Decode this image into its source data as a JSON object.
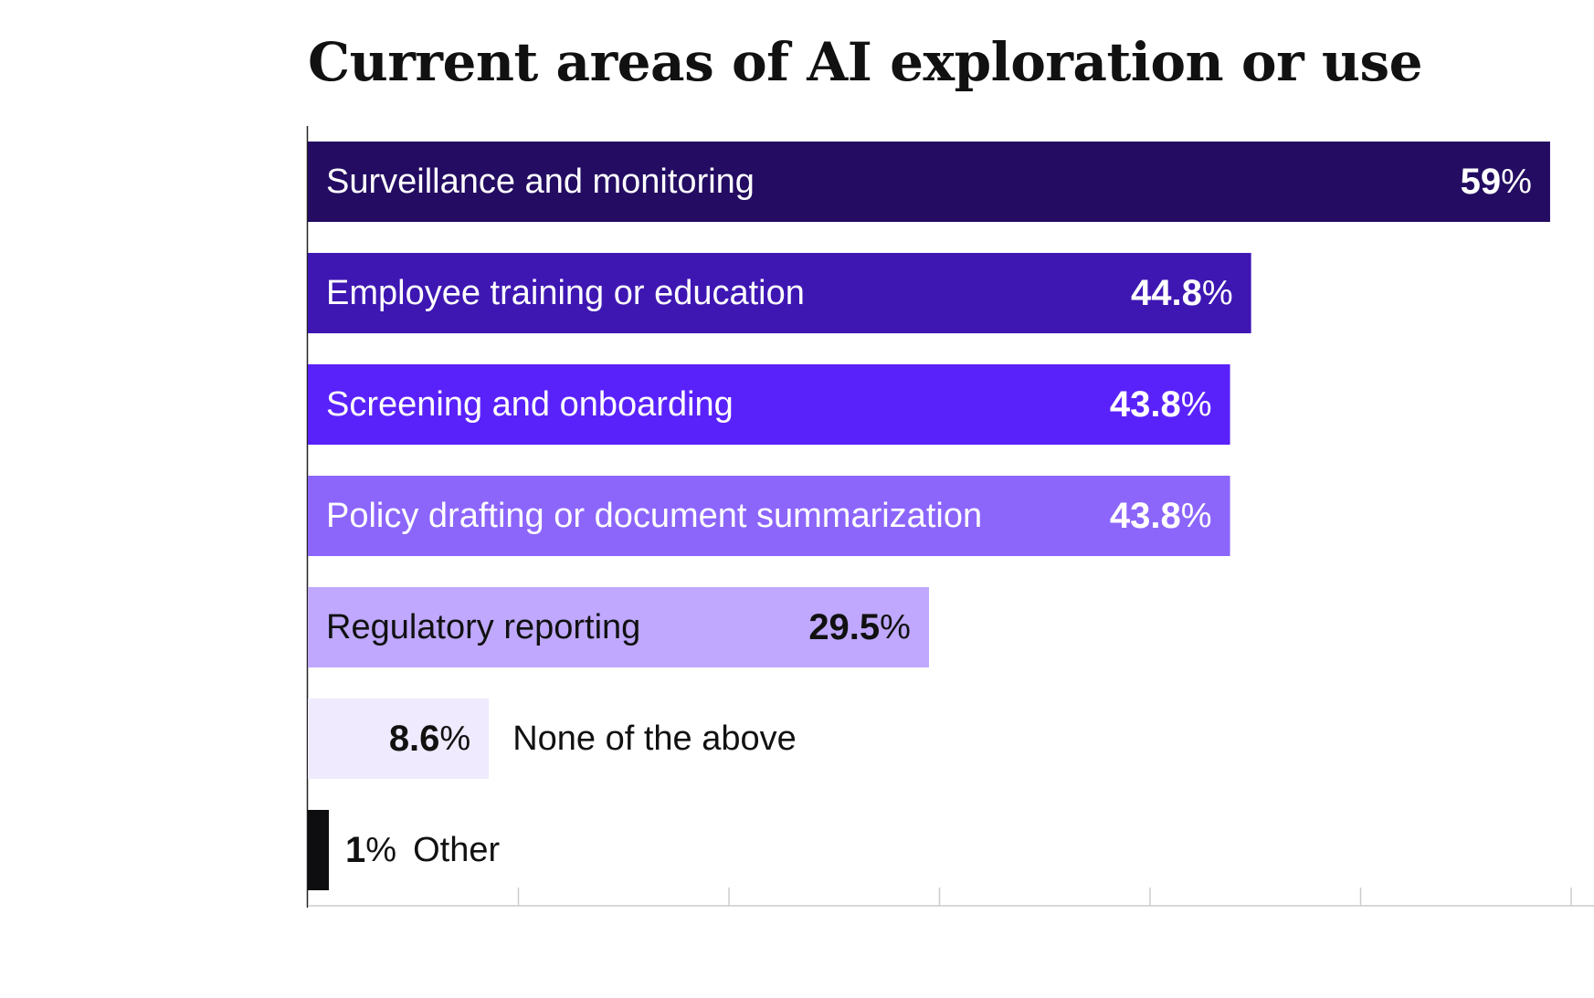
{
  "chart_data": {
    "type": "bar",
    "orientation": "horizontal",
    "title": "Current areas of AI exploration or use",
    "categories": [
      "Surveillance and monitoring",
      "Employee training or education",
      "Screening and onboarding",
      "Policy drafting or document summarization",
      "Regulatory reporting",
      "None of the above",
      "Other"
    ],
    "values": [
      59,
      44.8,
      43.8,
      43.8,
      29.5,
      8.6,
      1
    ],
    "value_labels": [
      "59",
      "44.8",
      "43.8",
      "43.8",
      "29.5",
      "8.6",
      "1"
    ],
    "value_suffix": "%",
    "colors": [
      "#230c62",
      "#3e17b3",
      "#5a22fb",
      "#8c66fb",
      "#bfa8fd",
      "#efeafe",
      "#0e0d10"
    ],
    "label_colors": [
      "#ffffff",
      "#ffffff",
      "#ffffff",
      "#ffffff",
      "#111111",
      "#111111",
      "#111111"
    ],
    "xlim": [
      0,
      60
    ],
    "grid": false,
    "legend": "none"
  }
}
